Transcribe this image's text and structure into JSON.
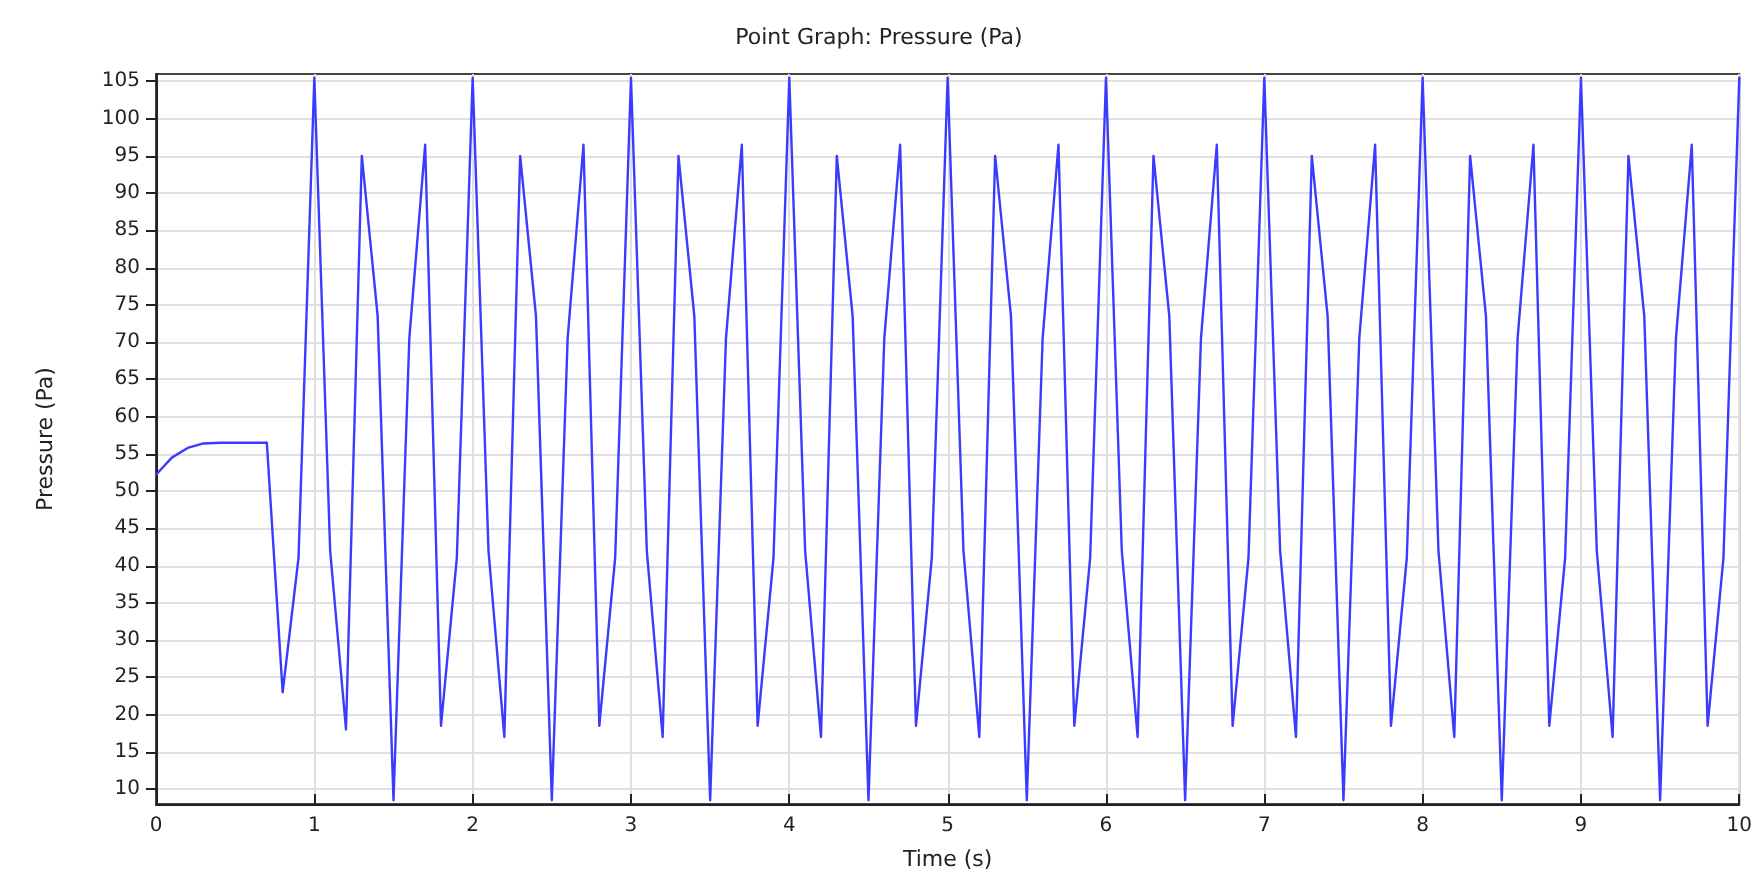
{
  "chart_data": {
    "type": "line",
    "title": "Point Graph: Pressure (Pa)",
    "xlabel": "Time (s)",
    "ylabel": "Pressure (Pa)",
    "x": [
      0,
      0.1,
      0.2,
      0.3,
      0.4,
      0.5,
      0.6,
      0.7,
      0.8,
      0.9,
      1,
      1.1,
      1.2,
      1.3,
      1.4,
      1.5,
      1.6,
      1.7,
      1.8,
      1.9,
      2,
      2.1,
      2.2,
      2.3,
      2.4,
      2.5,
      2.6,
      2.7,
      2.8,
      2.9,
      3,
      3.1,
      3.2,
      3.3,
      3.4,
      3.5,
      3.6,
      3.7,
      3.8,
      3.9,
      4,
      4.1,
      4.2,
      4.3,
      4.4,
      4.5,
      4.6,
      4.7,
      4.8,
      4.9,
      5,
      5.1,
      5.2,
      5.3,
      5.4,
      5.5,
      5.6,
      5.7,
      5.8,
      5.9,
      6,
      6.1,
      6.2,
      6.3,
      6.4,
      6.5,
      6.6,
      6.7,
      6.8,
      6.9,
      7,
      7.1,
      7.2,
      7.3,
      7.4,
      7.5,
      7.6,
      7.7,
      7.8,
      7.9,
      8,
      8.1,
      8.2,
      8.3,
      8.4,
      8.5,
      8.6,
      8.7,
      8.8,
      8.9,
      9,
      9.1,
      9.2,
      9.3,
      9.4,
      9.5,
      9.6,
      9.7,
      9.8,
      9.9,
      10
    ],
    "series": [
      {
        "color": "#3b3bff",
        "values": [
          52.2,
          54.5,
          55.8,
          56.4,
          56.5,
          56.5,
          56.5,
          56.5,
          23,
          41,
          105.5,
          42,
          18,
          95,
          73.5,
          8.5,
          70.5,
          96.5,
          18.5,
          41,
          105.5,
          42,
          17,
          95,
          73.5,
          8.5,
          70.5,
          96.5,
          18.5,
          41,
          105.5,
          42,
          17,
          95,
          73.5,
          8.5,
          70.5,
          96.5,
          18.5,
          41,
          105.5,
          42,
          17,
          95,
          73.5,
          8.5,
          70.5,
          96.5,
          18.5,
          41,
          105.5,
          42,
          17,
          95,
          73.5,
          8.5,
          70.5,
          96.5,
          18.5,
          41,
          105.5,
          42,
          17,
          95,
          73.5,
          8.5,
          70.5,
          96.5,
          18.5,
          41,
          105.5,
          42,
          17,
          95,
          73.5,
          8.5,
          70.5,
          96.5,
          18.5,
          41,
          105.5,
          42,
          17,
          95,
          73.5,
          8.5,
          70.5,
          96.5,
          18.5,
          41,
          105.5,
          42,
          17,
          95,
          73.5,
          8.5,
          70.5,
          96.5,
          18.5,
          41,
          105.5
        ]
      }
    ],
    "xlim": [
      0,
      10
    ],
    "xticks": [
      0,
      1,
      2,
      3,
      4,
      5,
      6,
      7,
      8,
      9,
      10
    ],
    "ylim": [
      8,
      106
    ],
    "yticks": [
      10,
      15,
      20,
      25,
      30,
      35,
      40,
      45,
      50,
      55,
      60,
      65,
      70,
      75,
      80,
      85,
      90,
      95,
      100,
      105
    ],
    "grid": true,
    "marker": "none",
    "line_style": "solid"
  }
}
